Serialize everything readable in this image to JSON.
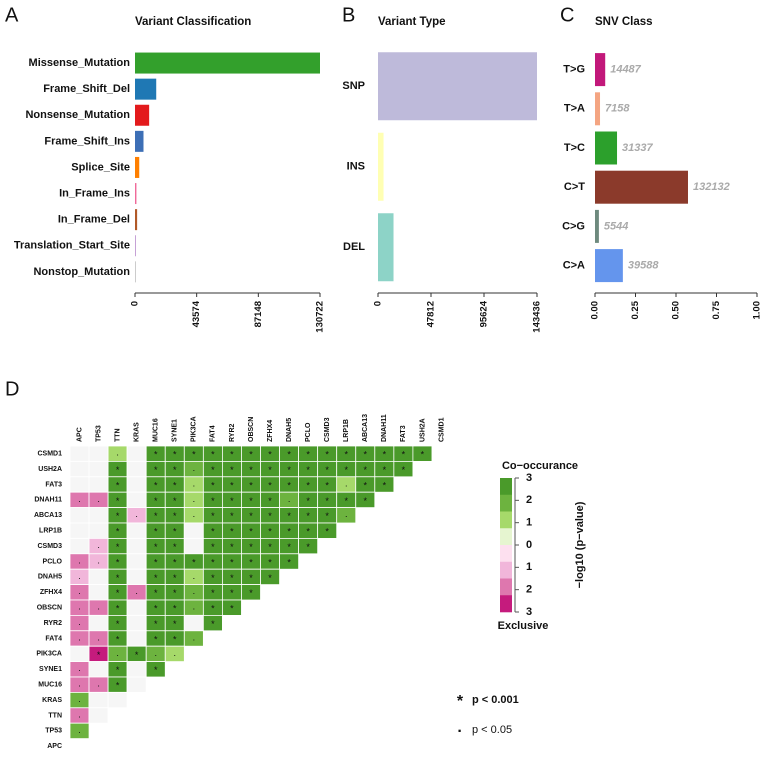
{
  "chart_data": [
    {
      "type": "hbar",
      "panel_label": "A",
      "title": "Variant Classification",
      "categories": [
        "Missense_Mutation",
        "Frame_Shift_Del",
        "Nonsense_Mutation",
        "Frame_Shift_Ins",
        "Splice_Site",
        "In_Frame_Ins",
        "In_Frame_Del",
        "Translation_Start_Site",
        "Nonstop_Mutation"
      ],
      "values": [
        130722,
        15000,
        10000,
        6000,
        3000,
        1000,
        1500,
        300,
        200
      ],
      "colors": [
        "#33a02c",
        "#1f78b4",
        "#e31a1c",
        "#3d6fb6",
        "#ff7f00",
        "#f06a9a",
        "#b15928",
        "#8e44ad",
        "#999999"
      ],
      "xlim": [
        0,
        130722
      ],
      "xticks": [
        0,
        43574,
        87148,
        130722
      ]
    },
    {
      "type": "hbar",
      "panel_label": "B",
      "title": "Variant Type",
      "categories": [
        "SNP",
        "INS",
        "DEL"
      ],
      "values": [
        143436,
        5000,
        14000
      ],
      "colors": [
        "#bebada",
        "#ffffb3",
        "#8dd3c7"
      ],
      "xlim": [
        0,
        143436
      ],
      "xticks": [
        0,
        47812,
        95624,
        143436
      ]
    },
    {
      "type": "hbar",
      "panel_label": "C",
      "title": "SNV Class",
      "categories": [
        "T>G",
        "T>A",
        "T>C",
        "C>T",
        "C>G",
        "C>A"
      ],
      "values": [
        0.063,
        0.031,
        0.136,
        0.574,
        0.024,
        0.172
      ],
      "counts": [
        14487,
        7158,
        31337,
        132132,
        5544,
        39588
      ],
      "colors": [
        "#c2187a",
        "#f4a582",
        "#2ca02c",
        "#8b3a2b",
        "#6e8a7e",
        "#6495ed"
      ],
      "xlim": [
        0,
        1
      ],
      "xticks": [
        {
          "value": 0,
          "label": "0.00"
        },
        {
          "value": 0.25,
          "label": "0.25"
        },
        {
          "value": 0.5,
          "label": "0.50"
        },
        {
          "value": 0.75,
          "label": "0.75"
        },
        {
          "value": 1,
          "label": "1.00"
        }
      ]
    },
    {
      "type": "heatmap",
      "panel_label": "D",
      "x_categories": [
        "APC",
        "TP53",
        "TTN",
        "KRAS",
        "MUC16",
        "SYNE1",
        "PIK3CA",
        "FAT4",
        "RYR2",
        "OBSCN",
        "ZFHX4",
        "DNAH5",
        "PCLO",
        "CSMD3",
        "LRP1B",
        "ABCA13",
        "DNAH11",
        "FAT3",
        "USH2A",
        "CSMD1"
      ],
      "y_categories": [
        "CSMD1",
        "USH2A",
        "FAT3",
        "DNAH11",
        "ABCA13",
        "LRP1B",
        "CSMD3",
        "PCLO",
        "DNAH5",
        "ZFHX4",
        "OBSCN",
        "RYR2",
        "FAT4",
        "PIK3CA",
        "SYNE1",
        "MUC16",
        "KRAS",
        "TTN",
        "TP53",
        "APC"
      ],
      "values": [
        [
          null,
          null,
          1.5,
          null,
          3,
          3,
          3,
          3,
          3,
          3,
          3,
          3,
          3,
          3,
          3,
          3,
          3,
          3,
          3
        ],
        [
          null,
          null,
          3,
          null,
          3,
          3,
          2,
          3,
          3,
          3,
          3,
          3,
          3,
          3,
          3,
          3,
          3,
          3
        ],
        [
          null,
          null,
          3,
          null,
          3,
          3,
          1,
          3,
          3,
          3,
          3,
          3,
          3,
          3,
          1.5,
          3,
          3
        ],
        [
          -1.5,
          -1.5,
          3,
          null,
          3,
          3,
          1,
          3,
          3,
          3,
          3,
          2,
          3,
          3,
          3,
          3
        ],
        [
          null,
          null,
          3,
          -1,
          3,
          3,
          1.5,
          3,
          3,
          3,
          3,
          3,
          3,
          3,
          2
        ],
        [
          null,
          null,
          3,
          null,
          3,
          3,
          null,
          3,
          3,
          3,
          3,
          3,
          3,
          3
        ],
        [
          null,
          -1,
          3,
          null,
          3,
          3,
          null,
          3,
          3,
          3,
          3,
          3,
          3
        ],
        [
          -2,
          -1,
          3,
          null,
          3,
          3,
          3,
          3,
          3,
          3,
          3,
          3
        ],
        [
          -1,
          null,
          3,
          null,
          3,
          3,
          1,
          3,
          3,
          3,
          3
        ],
        [
          -2,
          null,
          3,
          -2,
          3,
          3,
          2,
          3,
          3,
          3
        ],
        [
          -2,
          -2,
          3,
          null,
          3,
          3,
          2,
          3,
          3
        ],
        [
          -2,
          null,
          3,
          null,
          3,
          3,
          null,
          3
        ],
        [
          -2,
          -2,
          3,
          null,
          3,
          3,
          2
        ],
        [
          null,
          -3,
          2,
          3,
          2,
          1
        ],
        [
          -2,
          null,
          3,
          null,
          3
        ],
        [
          -2,
          -2,
          3,
          null
        ],
        [
          2,
          null,
          null
        ],
        [
          -2,
          null
        ],
        [
          2
        ],
        []
      ],
      "markers": [
        [
          null,
          null,
          "·",
          null,
          "*",
          "*",
          "*",
          "*",
          "*",
          "*",
          "*",
          "*",
          "*",
          "*",
          "*",
          "*",
          "*",
          "*",
          "*"
        ],
        [
          null,
          null,
          "*",
          null,
          "*",
          "*",
          "·",
          "*",
          "*",
          "*",
          "*",
          "*",
          "*",
          "*",
          "*",
          "*",
          "*",
          "*"
        ],
        [
          null,
          null,
          "*",
          null,
          "*",
          "*",
          "·",
          "*",
          "*",
          "*",
          "*",
          "*",
          "*",
          "*",
          "·",
          "*",
          "*"
        ],
        [
          "·",
          "·",
          "*",
          null,
          "*",
          "*",
          "·",
          "*",
          "*",
          "*",
          "*",
          "·",
          "*",
          "*",
          "*",
          "*"
        ],
        [
          null,
          null,
          "*",
          "·",
          "*",
          "*",
          "·",
          "*",
          "*",
          "*",
          "*",
          "*",
          "*",
          "*",
          "·"
        ],
        [
          null,
          null,
          "*",
          null,
          "*",
          "*",
          null,
          "*",
          "*",
          "*",
          "*",
          "*",
          "*",
          "*"
        ],
        [
          null,
          "·",
          "*",
          null,
          "*",
          "*",
          null,
          "*",
          "*",
          "*",
          "*",
          "*",
          "*"
        ],
        [
          "·",
          "·",
          "*",
          null,
          "*",
          "*",
          "*",
          "*",
          "*",
          "*",
          "*",
          "*"
        ],
        [
          "·",
          null,
          "*",
          null,
          "*",
          "*",
          "·",
          "*",
          "*",
          "*",
          "*"
        ],
        [
          "·",
          null,
          "*",
          "·",
          "*",
          "*",
          "·",
          "*",
          "*",
          "*"
        ],
        [
          "·",
          "·",
          "*",
          null,
          "*",
          "*",
          "·",
          "*",
          "*"
        ],
        [
          "·",
          null,
          "*",
          null,
          "*",
          "*",
          null,
          "*"
        ],
        [
          "·",
          "·",
          "*",
          null,
          "*",
          "*",
          "·"
        ],
        [
          null,
          "*",
          "·",
          "*",
          "·",
          "·"
        ],
        [
          "·",
          null,
          "*",
          null,
          "*"
        ],
        [
          "·",
          "·",
          "*",
          null
        ],
        [
          "·",
          null,
          null
        ],
        [
          "·",
          null
        ],
        [
          "·"
        ],
        []
      ],
      "colorbar": {
        "top_label": "Co−occurance",
        "bottom_label": "Exclusive",
        "axis_label": "−log10 (p−value)",
        "lim": [
          -3,
          3
        ],
        "colors": [
          "#4a9a2a",
          "#6db33f",
          "#a6d96a",
          "#e6f5d0",
          "#fde0ef",
          "#f1b6da",
          "#de77ae",
          "#c51b7d"
        ],
        "ticks": [
          3,
          2,
          1,
          0,
          {
            "value": -1,
            "label": "1"
          },
          {
            "value": -2,
            "label": "2"
          },
          {
            "value": -3,
            "label": "3"
          }
        ]
      },
      "significance": [
        {
          "symbol": "*",
          "label": "p < 0.001"
        },
        {
          "symbol": "·",
          "label": "p < 0.05"
        }
      ]
    }
  ]
}
